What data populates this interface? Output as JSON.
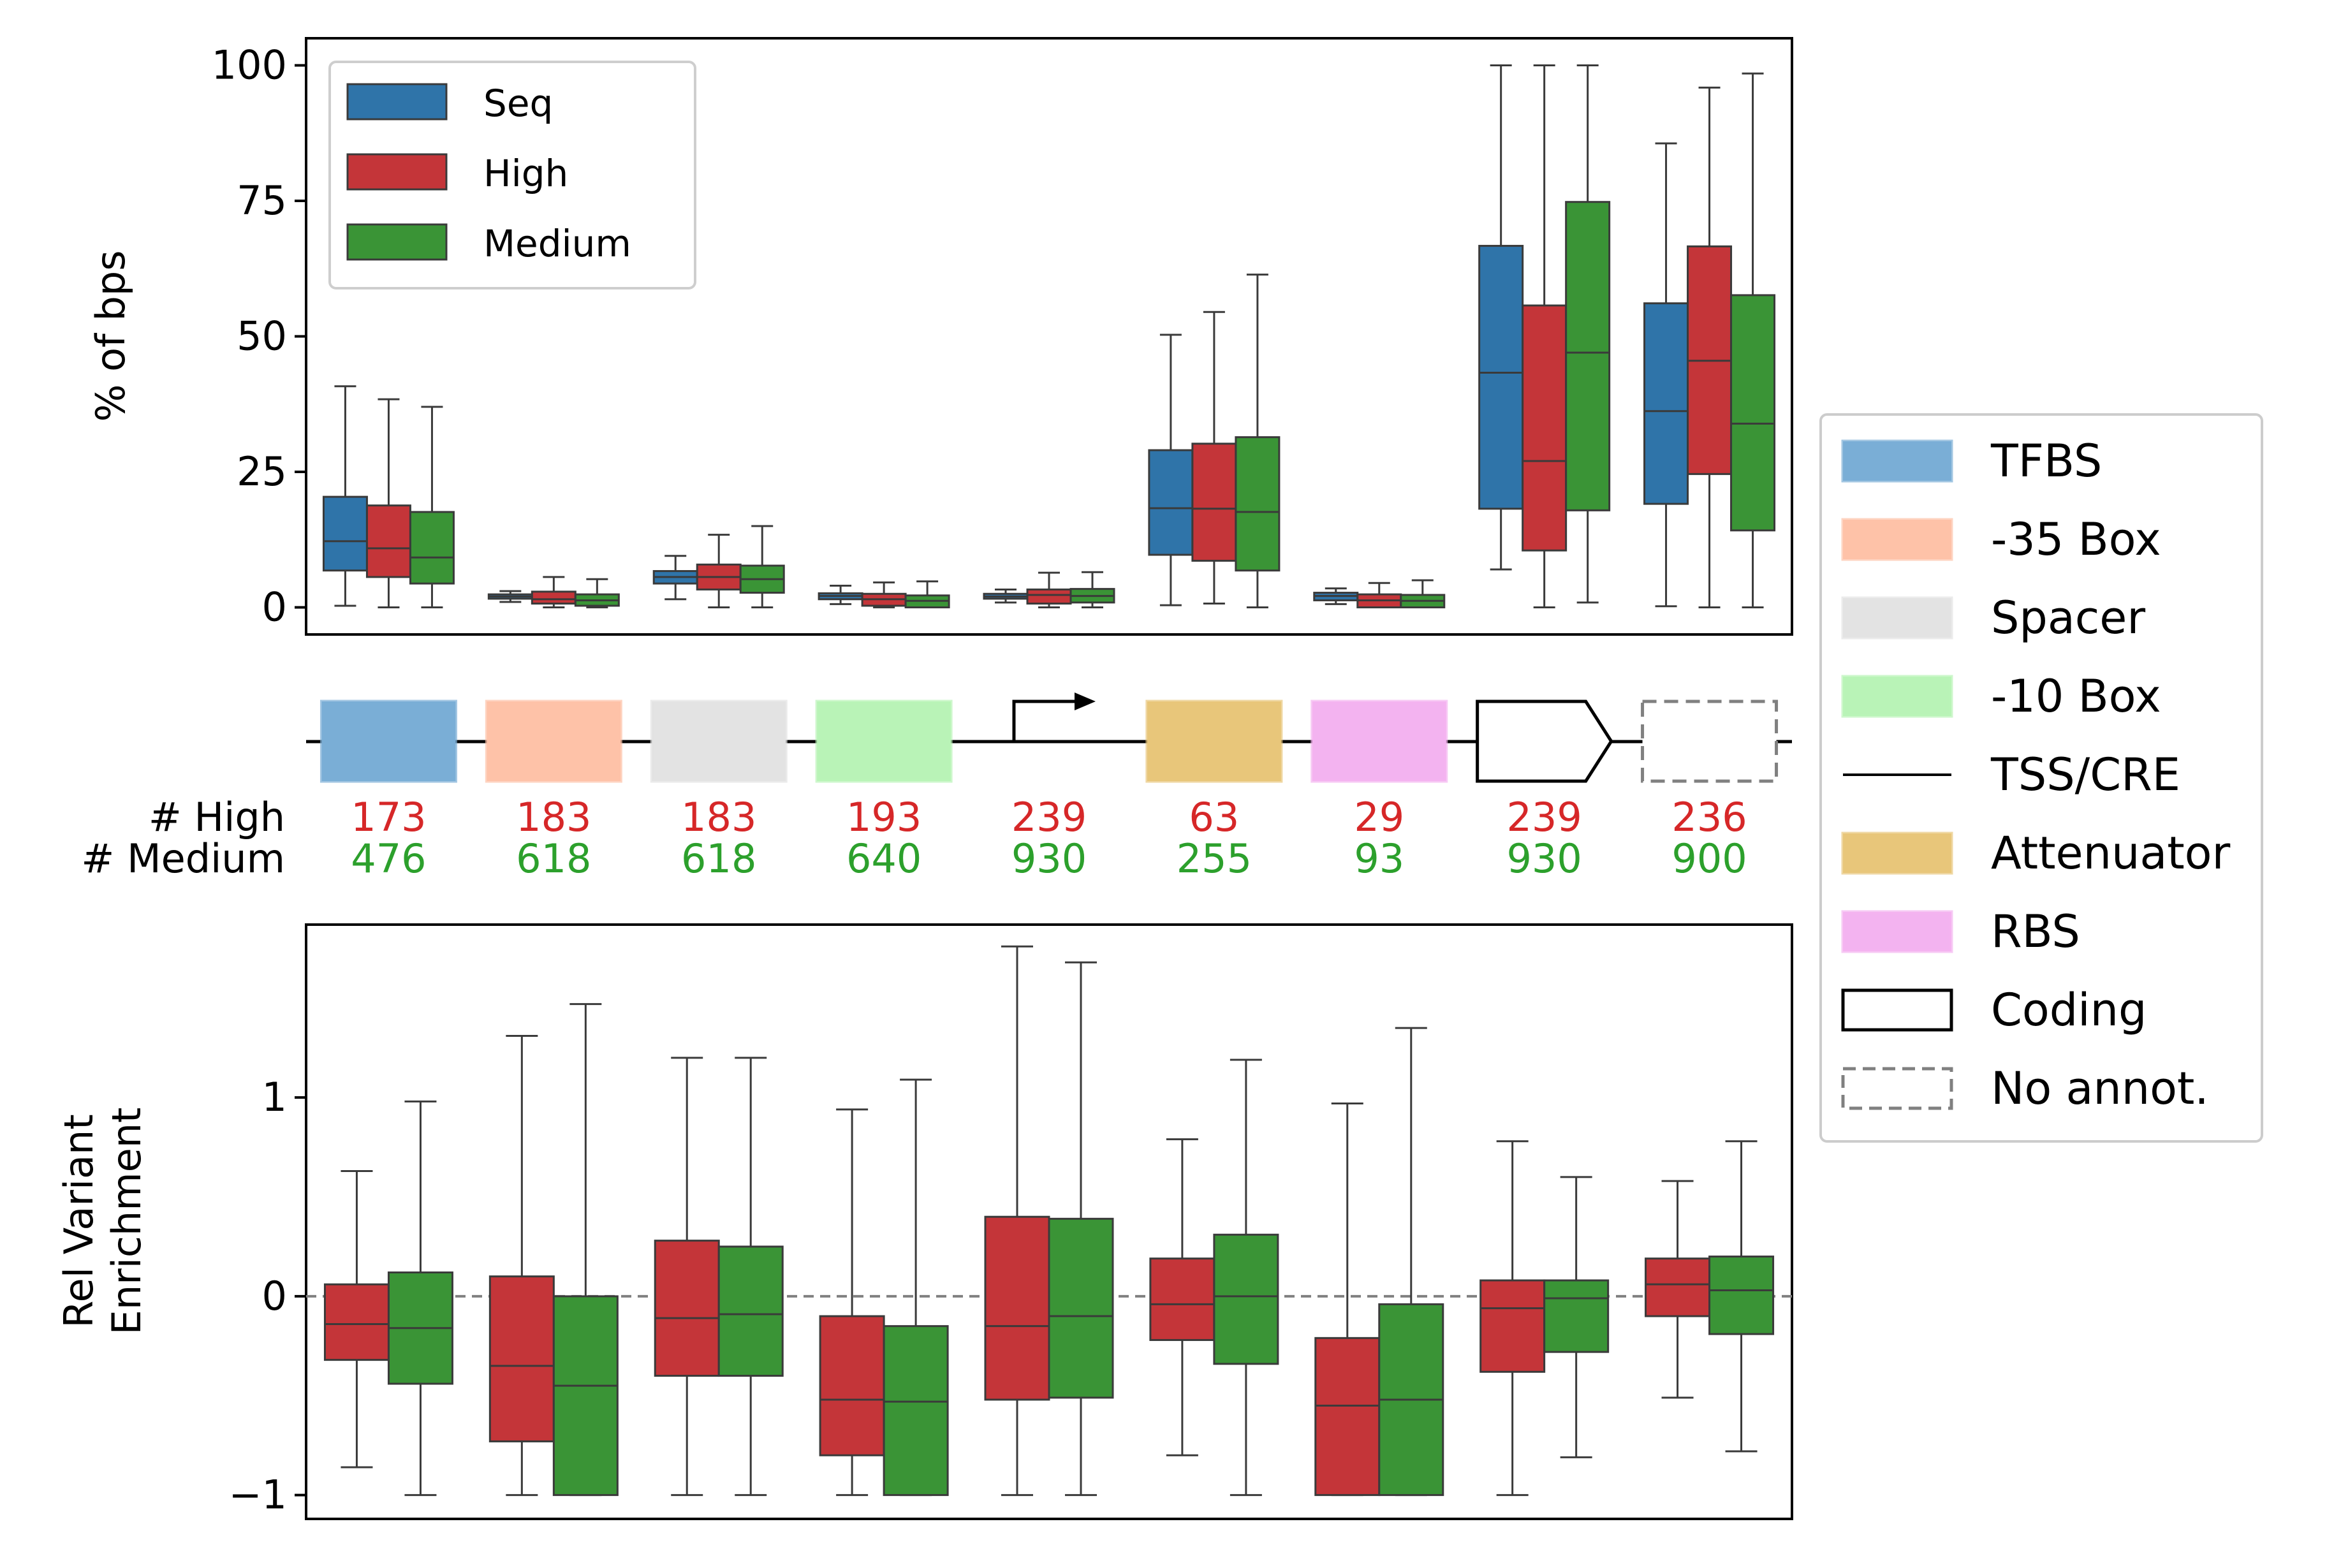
{
  "colors": {
    "seq": "#2f74a9",
    "high": "#c43539",
    "medium": "#3a9436",
    "high_text": "#d62728",
    "medium_text": "#2ca02c",
    "edge": "#3a3a3a",
    "tfbs": "#7aaed6",
    "box35": "#fec2a8",
    "spacer": "#e3e3e3",
    "box10": "#b9f3b7",
    "attenuator": "#e8c67a",
    "rbs": "#f3b3f0",
    "noannot": "#808080"
  },
  "chart_data": [
    {
      "type": "box",
      "ylabel": "% of bps",
      "ylim": [
        -5,
        105
      ],
      "yticks": [
        0,
        25,
        50,
        75,
        100
      ],
      "ytick_labels": [
        "0",
        "25",
        "50",
        "75",
        "100"
      ],
      "categories": [
        "TFBS",
        "-35 Box",
        "Spacer",
        "-10 Box",
        "TSS/CRE",
        "Attenuator",
        "RBS",
        "Coding",
        "No annot."
      ],
      "legend": {
        "position": "upper-left",
        "entries": [
          "Seq",
          "High",
          "Medium"
        ]
      },
      "series": [
        {
          "name": "Seq",
          "color_key": "seq",
          "boxes": [
            {
              "wlo": 0.3,
              "q1": 6.8,
              "med": 12.2,
              "q3": 20.4,
              "whi": 40.8
            },
            {
              "wlo": 1.0,
              "q1": 1.6,
              "med": 2.0,
              "q3": 2.4,
              "whi": 3.0
            },
            {
              "wlo": 1.5,
              "q1": 4.4,
              "med": 5.6,
              "q3": 6.7,
              "whi": 9.5
            },
            {
              "wlo": 0.6,
              "q1": 1.5,
              "med": 2.1,
              "q3": 2.6,
              "whi": 4.0
            },
            {
              "wlo": 0.9,
              "q1": 1.6,
              "med": 2.0,
              "q3": 2.5,
              "whi": 3.3
            },
            {
              "wlo": 0.4,
              "q1": 9.7,
              "med": 18.3,
              "q3": 29.0,
              "whi": 50.3
            },
            {
              "wlo": 0.6,
              "q1": 1.3,
              "med": 2.1,
              "q3": 2.7,
              "whi": 3.5
            },
            {
              "wlo": 7.0,
              "q1": 18.2,
              "med": 43.3,
              "q3": 66.7,
              "whi": 100.0
            },
            {
              "wlo": 0.2,
              "q1": 19.1,
              "med": 36.2,
              "q3": 56.1,
              "whi": 85.6
            }
          ]
        },
        {
          "name": "High",
          "color_key": "high",
          "boxes": [
            {
              "wlo": 0.0,
              "q1": 5.6,
              "med": 10.9,
              "q3": 18.8,
              "whi": 38.4
            },
            {
              "wlo": 0.0,
              "q1": 0.7,
              "med": 1.5,
              "q3": 2.9,
              "whi": 5.6
            },
            {
              "wlo": 0.0,
              "q1": 3.3,
              "med": 5.6,
              "q3": 7.9,
              "whi": 13.4
            },
            {
              "wlo": 0.0,
              "q1": 0.3,
              "med": 1.5,
              "q3": 2.5,
              "whi": 4.6
            },
            {
              "wlo": 0.0,
              "q1": 0.7,
              "med": 2.3,
              "q3": 3.3,
              "whi": 6.4
            },
            {
              "wlo": 0.7,
              "q1": 8.6,
              "med": 18.2,
              "q3": 30.2,
              "whi": 54.5
            },
            {
              "wlo": 0.0,
              "q1": 0.0,
              "med": 1.3,
              "q3": 2.4,
              "whi": 4.5
            },
            {
              "wlo": 0.0,
              "q1": 10.5,
              "med": 27.0,
              "q3": 55.7,
              "whi": 100.0
            },
            {
              "wlo": 0.0,
              "q1": 24.6,
              "med": 45.5,
              "q3": 66.6,
              "whi": 95.9
            }
          ]
        },
        {
          "name": "Medium",
          "color_key": "medium",
          "boxes": [
            {
              "wlo": 0.0,
              "q1": 4.4,
              "med": 9.2,
              "q3": 17.6,
              "whi": 37.0
            },
            {
              "wlo": 0.0,
              "q1": 0.3,
              "med": 1.3,
              "q3": 2.4,
              "whi": 5.2
            },
            {
              "wlo": 0.0,
              "q1": 2.7,
              "med": 5.2,
              "q3": 7.7,
              "whi": 15.0
            },
            {
              "wlo": 0.0,
              "q1": 0.0,
              "med": 1.2,
              "q3": 2.2,
              "whi": 4.8
            },
            {
              "wlo": 0.0,
              "q1": 0.9,
              "med": 2.1,
              "q3": 3.4,
              "whi": 6.5
            },
            {
              "wlo": 0.0,
              "q1": 6.8,
              "med": 17.6,
              "q3": 31.4,
              "whi": 61.4
            },
            {
              "wlo": 0.0,
              "q1": 0.0,
              "med": 1.2,
              "q3": 2.3,
              "whi": 5.0
            },
            {
              "wlo": 0.9,
              "q1": 17.9,
              "med": 47.0,
              "q3": 74.8,
              "whi": 100.0
            },
            {
              "wlo": 0.0,
              "q1": 14.2,
              "med": 33.9,
              "q3": 57.6,
              "whi": 98.5
            }
          ]
        }
      ]
    },
    {
      "type": "box",
      "ylabel": [
        "Rel Variant",
        "Enrichment"
      ],
      "ylim": [
        -1.12,
        1.87
      ],
      "yticks": [
        -1,
        0,
        1
      ],
      "ytick_labels": [
        "−1",
        "0",
        "1"
      ],
      "reference_line": 0,
      "categories": [
        "TFBS",
        "-35 Box",
        "Spacer",
        "-10 Box",
        "TSS/CRE",
        "Attenuator",
        "RBS",
        "Coding",
        "No annot."
      ],
      "series": [
        {
          "name": "High",
          "color_key": "high",
          "boxes": [
            {
              "wlo": -0.86,
              "q1": -0.32,
              "med": -0.14,
              "q3": 0.06,
              "whi": 0.63
            },
            {
              "wlo": -1.0,
              "q1": -0.73,
              "med": -0.35,
              "q3": 0.1,
              "whi": 1.31
            },
            {
              "wlo": -1.0,
              "q1": -0.4,
              "med": -0.11,
              "q3": 0.28,
              "whi": 1.2
            },
            {
              "wlo": -1.0,
              "q1": -0.8,
              "med": -0.52,
              "q3": -0.1,
              "whi": 0.94
            },
            {
              "wlo": -1.0,
              "q1": -0.52,
              "med": -0.15,
              "q3": 0.4,
              "whi": 1.76
            },
            {
              "wlo": -0.8,
              "q1": -0.22,
              "med": -0.04,
              "q3": 0.19,
              "whi": 0.79
            },
            {
              "wlo": -1.0,
              "q1": -1.0,
              "med": -0.55,
              "q3": -0.21,
              "whi": 0.97
            },
            {
              "wlo": -1.0,
              "q1": -0.38,
              "med": -0.06,
              "q3": 0.08,
              "whi": 0.78
            },
            {
              "wlo": -0.51,
              "q1": -0.1,
              "med": 0.06,
              "q3": 0.19,
              "whi": 0.58
            }
          ]
        },
        {
          "name": "Medium",
          "color_key": "medium",
          "boxes": [
            {
              "wlo": -1.0,
              "q1": -0.44,
              "med": -0.16,
              "q3": 0.12,
              "whi": 0.98
            },
            {
              "wlo": -1.0,
              "q1": -1.0,
              "med": -0.45,
              "q3": 0.0,
              "whi": 1.47
            },
            {
              "wlo": -1.0,
              "q1": -0.4,
              "med": -0.09,
              "q3": 0.25,
              "whi": 1.2
            },
            {
              "wlo": -1.0,
              "q1": -1.0,
              "med": -0.53,
              "q3": -0.15,
              "whi": 1.09
            },
            {
              "wlo": -1.0,
              "q1": -0.51,
              "med": -0.1,
              "q3": 0.39,
              "whi": 1.68
            },
            {
              "wlo": -1.0,
              "q1": -0.34,
              "med": 0.0,
              "q3": 0.31,
              "whi": 1.19
            },
            {
              "wlo": -1.0,
              "q1": -1.0,
              "med": -0.52,
              "q3": -0.04,
              "whi": 1.35
            },
            {
              "wlo": -0.81,
              "q1": -0.28,
              "med": -0.01,
              "q3": 0.08,
              "whi": 0.6
            },
            {
              "wlo": -0.78,
              "q1": -0.19,
              "med": 0.03,
              "q3": 0.2,
              "whi": 0.78
            }
          ]
        }
      ]
    }
  ],
  "counts": {
    "high_label": "# High",
    "medium_label": "# Medium",
    "high": [
      "173",
      "183",
      "183",
      "193",
      "239",
      "63",
      "29",
      "239",
      "236"
    ],
    "medium": [
      "476",
      "618",
      "618",
      "640",
      "930",
      "255",
      "93",
      "930",
      "900"
    ]
  },
  "annotation_track": [
    {
      "kind": "rect",
      "color_key": "tfbs"
    },
    {
      "kind": "rect",
      "color_key": "box35"
    },
    {
      "kind": "rect",
      "color_key": "spacer"
    },
    {
      "kind": "rect",
      "color_key": "box10"
    },
    {
      "kind": "tss"
    },
    {
      "kind": "rect",
      "color_key": "attenuator"
    },
    {
      "kind": "rect",
      "color_key": "rbs"
    },
    {
      "kind": "coding"
    },
    {
      "kind": "noannot"
    }
  ],
  "feature_legend": [
    {
      "label": "TFBS",
      "kind": "rect",
      "color_key": "tfbs"
    },
    {
      "label": "-35 Box",
      "kind": "rect",
      "color_key": "box35"
    },
    {
      "label": "Spacer",
      "kind": "rect",
      "color_key": "spacer"
    },
    {
      "label": "-10 Box",
      "kind": "rect",
      "color_key": "box10"
    },
    {
      "label": "TSS/CRE",
      "kind": "line"
    },
    {
      "label": "Attenuator",
      "kind": "rect",
      "color_key": "attenuator"
    },
    {
      "label": "RBS",
      "kind": "rect",
      "color_key": "rbs"
    },
    {
      "label": "Coding",
      "kind": "coding"
    },
    {
      "label": "No annot.",
      "kind": "noannot"
    }
  ]
}
